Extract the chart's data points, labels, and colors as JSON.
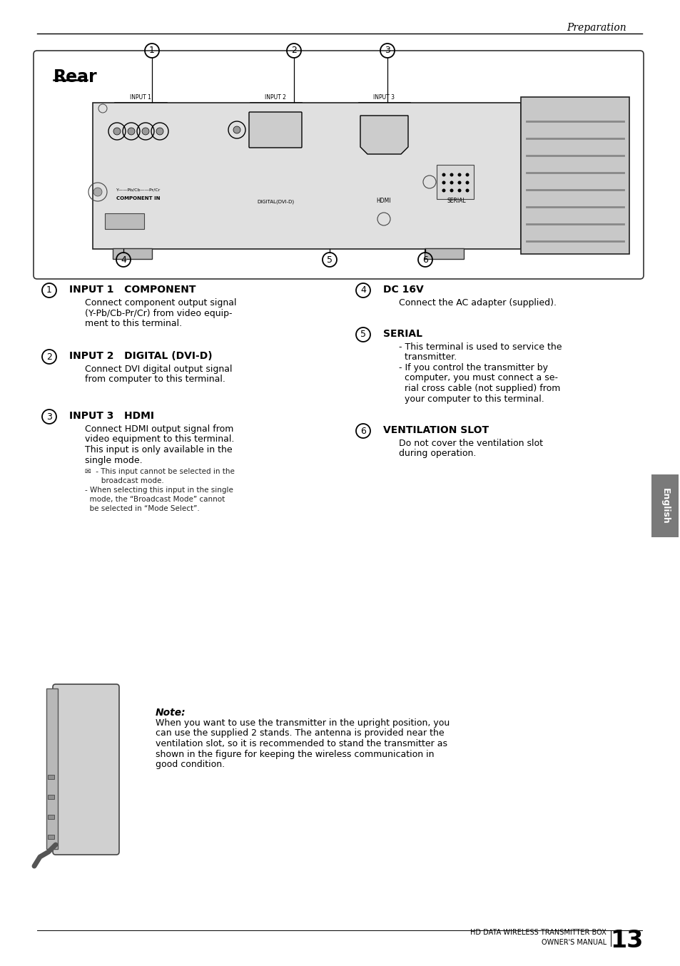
{
  "page_header": "Preparation",
  "section_title": "Rear",
  "items_left": [
    {
      "number": "1",
      "title": "INPUT 1   COMPONENT",
      "body": "Connect component output signal\n(Y-Pb/Cb-Pr/Cr) from video equip-\nment to this terminal."
    },
    {
      "number": "2",
      "title": "INPUT 2   DIGITAL (DVI-D)",
      "body": "Connect DVI digital output signal\nfrom computer to this terminal."
    },
    {
      "number": "3",
      "title": "INPUT 3   HDMI",
      "body": "Connect HDMI output signal from\nvideo equipment to this terminal.\nThis input is only available in the\nsingle mode.",
      "notes": [
        "✉  - This input cannot be selected in the\n       broadcast mode.",
        "- When selecting this input in the single\n  mode, the “Broadcast Mode” cannot\n  be selected in “Mode Select”."
      ]
    }
  ],
  "items_right": [
    {
      "number": "4",
      "title": "DC 16V",
      "body": "Connect the AC adapter (supplied)."
    },
    {
      "number": "5",
      "title": "SERIAL",
      "body": "- This terminal is used to service the\n  transmitter.\n- If you control the transmitter by\n  computer, you must connect a se-\n  rial cross cable (not supplied) from\n  your computer to this terminal."
    },
    {
      "number": "6",
      "title": "VENTILATION SLOT",
      "body": "Do not cover the ventilation slot\nduring operation."
    }
  ],
  "note_title": "Note:",
  "note_body": "When you want to use the transmitter in the upright position, you\ncan use the supplied 2 stands. The antenna is provided near the\nventilation slot, so it is recommended to stand the transmitter as\nshown in the figure for keeping the wireless communication in\ngood condition.",
  "footer_text": "HD DATA WIRELESS TRANSMITTER BOX\nOWNER'S MANUAL",
  "footer_num": "13",
  "sidebar_text": "English",
  "bg_color": "#ffffff",
  "sidebar_bg": "#7a7a7a"
}
